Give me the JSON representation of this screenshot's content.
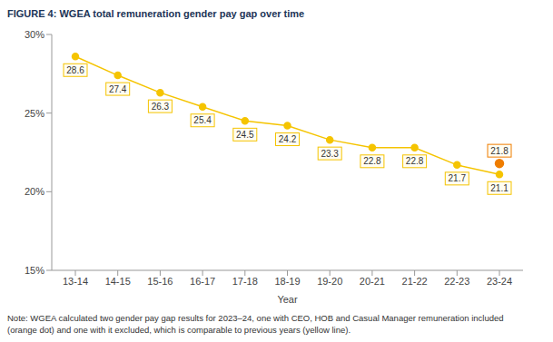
{
  "chart_data": {
    "type": "line",
    "title": "FIGURE 4: WGEA total remuneration gender pay gap over time",
    "x_label": "Year",
    "categories": [
      "13-14",
      "14-15",
      "15-16",
      "16-17",
      "17-18",
      "18-19",
      "19-20",
      "20-21",
      "21-22",
      "22-23",
      "23-24"
    ],
    "series": [
      {
        "color": "#f5c400",
        "marker": "circle",
        "values": [
          28.6,
          27.4,
          26.3,
          25.4,
          24.5,
          24.2,
          23.3,
          22.8,
          22.8,
          21.7,
          21.1
        ]
      },
      {
        "color": "#ef7d00",
        "marker": "circle",
        "values": [
          null,
          null,
          null,
          null,
          null,
          null,
          null,
          null,
          null,
          null,
          21.8
        ]
      }
    ],
    "ylim": [
      15,
      30
    ],
    "yticks": [
      {
        "value": 15,
        "label": "15%"
      },
      {
        "value": 20,
        "label": "20%"
      },
      {
        "value": 25,
        "label": "25%"
      },
      {
        "value": 30,
        "label": "30%"
      }
    ],
    "grid": false,
    "data_labels": true,
    "note": "Note: WGEA calculated two gender pay gap results for 2023–24, one with CEO, HOB and Casual Manager remuneration included (orange dot) and one with it excluded, which is comparable to previous years (yellow line)."
  }
}
